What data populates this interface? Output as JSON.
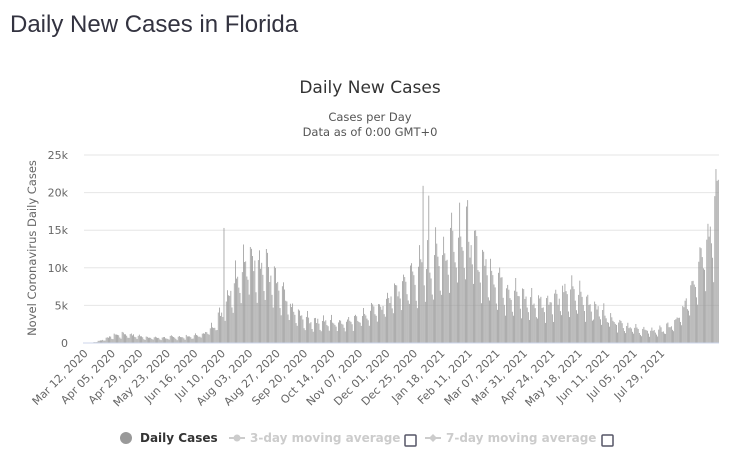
{
  "page": {
    "title": "Daily New Cases in Florida"
  },
  "chart_data": {
    "type": "bar",
    "title": "Daily New Cases",
    "subtitle_lines": [
      "Cases per Day",
      "Data as of 0:00 GMT+0"
    ],
    "xlabel": "",
    "ylabel": "Novel Coronavirus Daily Cases",
    "ylim": [
      0,
      25000
    ],
    "y_ticks": [
      {
        "value": 0,
        "label": "0"
      },
      {
        "value": 5000,
        "label": "5k"
      },
      {
        "value": 10000,
        "label": "10k"
      },
      {
        "value": 15000,
        "label": "15k"
      },
      {
        "value": 20000,
        "label": "20k"
      },
      {
        "value": 25000,
        "label": "25k"
      }
    ],
    "grid": true,
    "x_start": "Mar 12, 2020",
    "x_end": "Jul 29, 2021",
    "x_tick_labels": [
      "Mar 12, 2020",
      "Apr 05, 2020",
      "Apr 29, 2020",
      "May 23, 2020",
      "Jun 16, 2020",
      "Jul 10, 2020",
      "Aug 03, 2020",
      "Aug 27, 2020",
      "Sep 20, 2020",
      "Oct 14, 2020",
      "Nov 07, 2020",
      "Dec 01, 2020",
      "Dec 25, 2020",
      "Jan 18, 2021",
      "Feb 11, 2021",
      "Mar 07, 2021",
      "Mar 31, 2021",
      "Apr 24, 2021",
      "May 18, 2021",
      "Jun 11, 2021",
      "Jul 05, 2021",
      "Jul 29, 2021"
    ],
    "x_tick_interval_days": 24,
    "series": [
      {
        "name": "Daily Cases",
        "color": "#999999",
        "weekly_levels": [
          0,
          50,
          300,
          700,
          1000,
          1100,
          1000,
          800,
          700,
          650,
          650,
          700,
          750,
          800,
          900,
          1200,
          2000,
          3500,
          6000,
          8500,
          9500,
          10500,
          10000,
          9000,
          7000,
          5500,
          4000,
          3200,
          2800,
          2700,
          2700,
          2600,
          2600,
          2800,
          3200,
          3600,
          4000,
          4600,
          5500,
          6500,
          7500,
          8200,
          9000,
          9500,
          10500,
          11000,
          13000,
          14000,
          13000,
          11000,
          9500,
          8500,
          7500,
          6500,
          6000,
          5500,
          5000,
          5000,
          5200,
          5600,
          6000,
          6200,
          5800,
          5000,
          4200,
          3600,
          3000,
          2500,
          2000,
          1700,
          1500,
          1500,
          1600,
          2000,
          2700,
          4500,
          7500,
          11000,
          14000,
          16500
        ],
        "peaks": [
          {
            "date": "Jul 12, 2020",
            "value": 15300
          },
          {
            "date": "Jan 02, 2021",
            "value": 20900
          },
          {
            "date": "Jan 07, 2021",
            "value": 19600
          },
          {
            "date": "Jul 30, 2021",
            "value": 21700
          }
        ]
      },
      {
        "name": "3-day moving average",
        "color": "#cccccc",
        "visible": false
      },
      {
        "name": "7-day moving average",
        "color": "#cccccc",
        "visible": false
      }
    ],
    "legend": {
      "placement": "bottom-center"
    }
  }
}
